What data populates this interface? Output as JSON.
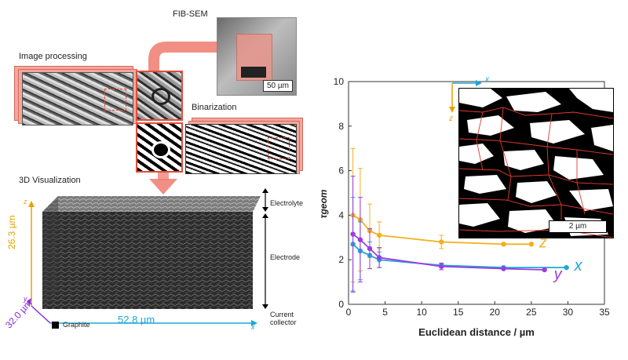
{
  "panel_left": {
    "fib_sem_label": "FIB-SEM",
    "fib_scale_bar": "50 µm",
    "image_processing_label": "Image processing",
    "binarization_label": "Binarization",
    "visualization_label": "3D Visualization",
    "electrolyte_label": "Electrolyte",
    "electrode_label": "Electrode",
    "collector_label_line1": "Current",
    "collector_label_line2": "collector",
    "graphite_legend": "Graphite",
    "dim_z": "26.3 µm",
    "dim_y": "32.0 µm",
    "dim_x": "52.8 µm",
    "axis_z": "z",
    "axis_y": "y",
    "axis_x": "x",
    "colors": {
      "salmon": "#f07b6e",
      "yellow_dim": "#e8a200",
      "purple_dim": "#8a2be2",
      "blue_dim": "#1aa7d9"
    }
  },
  "inset": {
    "axis_x": "x",
    "axis_z": "z",
    "scale_bar": "2 µm"
  },
  "chart_data": {
    "type": "line",
    "xlabel": "Euclidean distance / µm",
    "ylabel": "τgeom",
    "xlim": [
      0,
      35
    ],
    "ylim": [
      0,
      10
    ],
    "xticks": [
      0,
      5,
      10,
      15,
      20,
      25,
      30,
      35
    ],
    "yticks": [
      0,
      2,
      4,
      6,
      8,
      10
    ],
    "grid": false,
    "series": [
      {
        "name": "z",
        "color": "#f2b01e",
        "x": [
          0.6,
          1.6,
          2.9,
          4.2,
          12.7,
          21.2,
          25.0
        ],
        "y": [
          4.0,
          3.8,
          3.3,
          3.1,
          2.8,
          2.7,
          2.7
        ],
        "err": [
          3.0,
          2.3,
          1.2,
          0.6,
          0.3,
          0.05,
          0.05
        ]
      },
      {
        "name": "x",
        "color": "#1fa8d8",
        "x": [
          0.6,
          1.6,
          2.9,
          4.2,
          12.7,
          21.2,
          29.8
        ],
        "y": [
          2.7,
          2.4,
          2.2,
          2.0,
          1.75,
          1.65,
          1.65
        ],
        "err": [
          2.1,
          1.3,
          0.6,
          0.35,
          0.1,
          0.05,
          0.05
        ]
      },
      {
        "name": "y",
        "color": "#9b3de0",
        "x": [
          0.6,
          1.6,
          2.9,
          4.2,
          12.7,
          21.2,
          26.8
        ],
        "y": [
          3.15,
          2.9,
          2.5,
          2.1,
          1.7,
          1.6,
          1.55
        ],
        "err": [
          2.6,
          1.9,
          0.9,
          0.45,
          0.15,
          0.05,
          0.05
        ]
      }
    ]
  }
}
